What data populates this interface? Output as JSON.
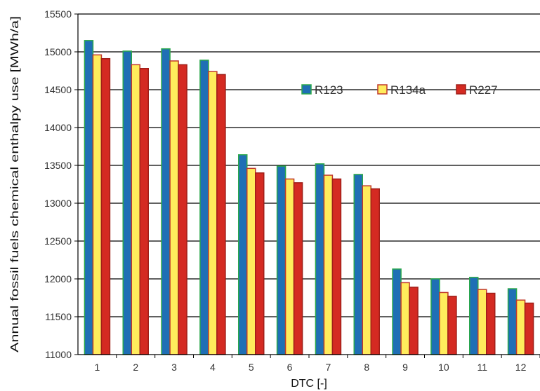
{
  "chart_data": {
    "type": "bar",
    "title": "",
    "xlabel": "DTC [-]",
    "ylabel": "Annual fossil fuels chemical enthalpy use [MWh/a]",
    "ylim": [
      11000,
      15500
    ],
    "yticks": [
      11000,
      11500,
      12000,
      12500,
      13000,
      13500,
      14000,
      14500,
      15000,
      15500
    ],
    "grid": true,
    "legend_position": "top-right",
    "categories": [
      "1",
      "2",
      "3",
      "4",
      "5",
      "6",
      "7",
      "8",
      "9",
      "10",
      "11",
      "12"
    ],
    "series": [
      {
        "name": "R123",
        "color": "#1f6fb5",
        "edge": "#2aa84a",
        "values": [
          15150,
          15010,
          15040,
          14890,
          13640,
          13490,
          13520,
          13380,
          12130,
          12000,
          12020,
          11870
        ]
      },
      {
        "name": "R134a",
        "color": "#ffec5c",
        "edge": "#c0392b",
        "values": [
          14960,
          14830,
          14880,
          14740,
          13460,
          13320,
          13370,
          13230,
          11950,
          11820,
          11860,
          11720
        ]
      },
      {
        "name": "R227",
        "color": "#d42a22",
        "edge": "#a01e18",
        "values": [
          14910,
          14780,
          14830,
          14700,
          13400,
          13270,
          13320,
          13190,
          11890,
          11770,
          11810,
          11680
        ]
      }
    ]
  }
}
